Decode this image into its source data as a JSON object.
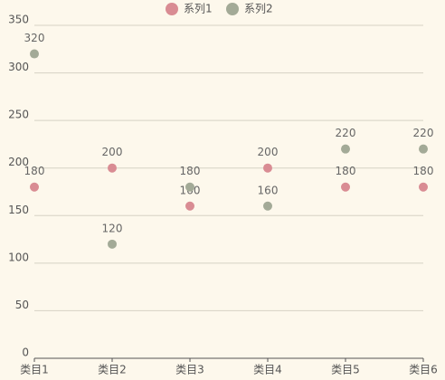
{
  "chart_data": {
    "type": "scatter",
    "categories": [
      "类目1",
      "类目2",
      "类目3",
      "类目4",
      "类目5",
      "类目6"
    ],
    "series": [
      {
        "name": "系列1",
        "color": "#d98c93",
        "values": [
          180,
          200,
          160,
          200,
          180,
          180
        ]
      },
      {
        "name": "系列2",
        "color": "#a3aa97",
        "values": [
          320,
          120,
          180,
          160,
          220,
          220
        ]
      }
    ],
    "ylim": [
      0,
      350
    ],
    "yticks": [
      0,
      50,
      100,
      150,
      200,
      250,
      300,
      350
    ],
    "grid": true
  }
}
